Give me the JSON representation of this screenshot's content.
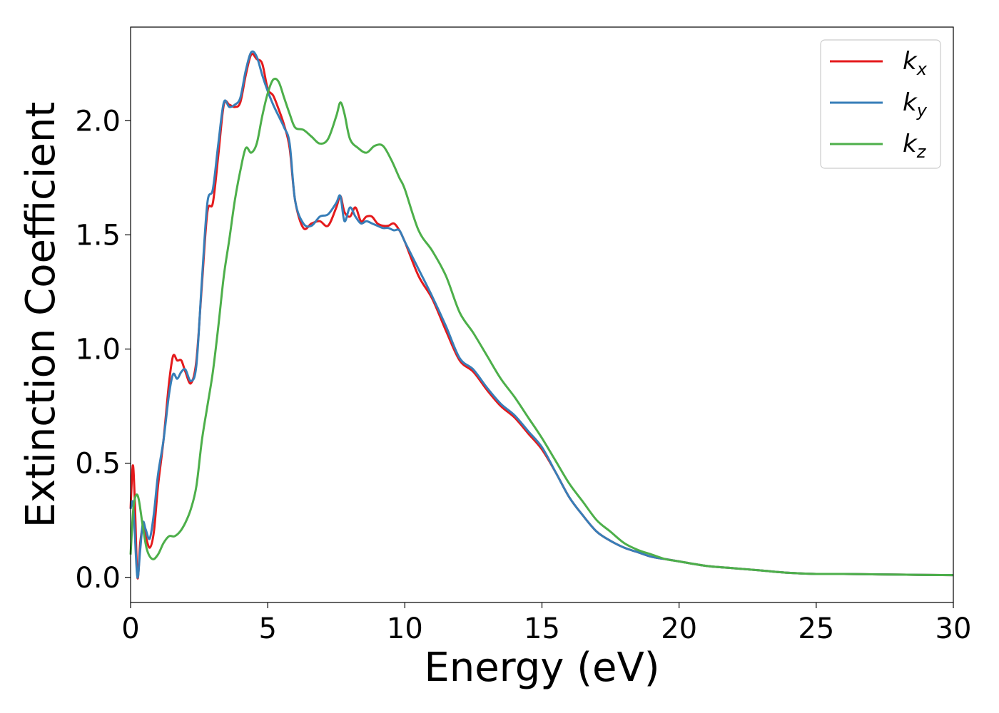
{
  "chart_data": {
    "type": "line",
    "xlabel": "Energy (eV)",
    "ylabel": "Extinction Coefficient",
    "xlim": [
      0,
      30
    ],
    "ylim": [
      -0.11,
      2.41
    ],
    "xticks": [
      0,
      5,
      10,
      15,
      20,
      25,
      30
    ],
    "xtick_labels": [
      "0",
      "5",
      "10",
      "15",
      "20",
      "25",
      "30"
    ],
    "yticks": [
      0.0,
      0.5,
      1.0,
      1.5,
      2.0
    ],
    "ytick_labels": [
      "0.0",
      "0.5",
      "1.0",
      "1.5",
      "2.0"
    ],
    "grid": false,
    "legend_position": "top-right",
    "series": [
      {
        "name": "k_x",
        "label_main": "k",
        "label_sub": "x",
        "color": "#e41a1c",
        "x": [
          0.0,
          0.08,
          0.15,
          0.25,
          0.35,
          0.45,
          0.55,
          0.7,
          0.85,
          1.0,
          1.2,
          1.4,
          1.55,
          1.7,
          1.85,
          2.0,
          2.2,
          2.4,
          2.6,
          2.8,
          3.0,
          3.2,
          3.4,
          3.6,
          3.8,
          4.0,
          4.2,
          4.4,
          4.6,
          4.8,
          5.0,
          5.2,
          5.4,
          5.6,
          5.8,
          6.0,
          6.3,
          6.6,
          6.9,
          7.2,
          7.5,
          7.65,
          7.8,
          8.0,
          8.2,
          8.4,
          8.6,
          8.8,
          9.0,
          9.2,
          9.4,
          9.6,
          9.8,
          10.0,
          10.5,
          11.0,
          11.5,
          12.0,
          12.5,
          13.0,
          13.5,
          14.0,
          14.5,
          15.0,
          15.5,
          16.0,
          16.5,
          17.0,
          17.5,
          18.0,
          18.5,
          19.0,
          19.5,
          20.0,
          21.0,
          22.0,
          23.0,
          24.0,
          25.0,
          26.0,
          28.0,
          30.0
        ],
        "y": [
          0.3,
          0.49,
          0.35,
          0.0,
          0.15,
          0.22,
          0.18,
          0.13,
          0.2,
          0.4,
          0.6,
          0.85,
          0.97,
          0.95,
          0.95,
          0.9,
          0.85,
          0.95,
          1.28,
          1.6,
          1.64,
          1.85,
          2.07,
          2.07,
          2.06,
          2.08,
          2.2,
          2.29,
          2.27,
          2.25,
          2.14,
          2.11,
          2.05,
          1.98,
          1.88,
          1.65,
          1.53,
          1.55,
          1.56,
          1.54,
          1.62,
          1.67,
          1.6,
          1.58,
          1.62,
          1.56,
          1.58,
          1.58,
          1.55,
          1.54,
          1.54,
          1.55,
          1.52,
          1.47,
          1.32,
          1.22,
          1.08,
          0.95,
          0.9,
          0.82,
          0.75,
          0.7,
          0.63,
          0.56,
          0.46,
          0.35,
          0.27,
          0.2,
          0.16,
          0.13,
          0.11,
          0.09,
          0.08,
          0.07,
          0.05,
          0.04,
          0.03,
          0.02,
          0.015,
          0.015,
          0.012,
          0.01
        ]
      },
      {
        "name": "k_y",
        "label_main": "k",
        "label_sub": "y",
        "color": "#377eb8",
        "x": [
          0.0,
          0.08,
          0.15,
          0.25,
          0.35,
          0.45,
          0.55,
          0.7,
          0.85,
          1.0,
          1.2,
          1.4,
          1.55,
          1.7,
          1.85,
          2.0,
          2.2,
          2.4,
          2.6,
          2.8,
          3.0,
          3.2,
          3.4,
          3.6,
          3.8,
          4.0,
          4.2,
          4.4,
          4.6,
          4.8,
          5.0,
          5.2,
          5.4,
          5.6,
          5.8,
          6.0,
          6.3,
          6.6,
          6.9,
          7.2,
          7.5,
          7.65,
          7.8,
          8.0,
          8.2,
          8.4,
          8.6,
          8.8,
          9.0,
          9.2,
          9.4,
          9.6,
          9.8,
          10.0,
          10.5,
          11.0,
          11.5,
          12.0,
          12.5,
          13.0,
          13.5,
          14.0,
          14.5,
          15.0,
          15.5,
          16.0,
          16.5,
          17.0,
          17.5,
          18.0,
          18.5,
          19.0,
          19.5,
          20.0,
          21.0,
          22.0,
          23.0,
          24.0,
          25.0,
          26.0,
          28.0,
          30.0
        ],
        "y": [
          0.3,
          0.33,
          0.2,
          0.0,
          0.12,
          0.24,
          0.21,
          0.17,
          0.28,
          0.45,
          0.6,
          0.8,
          0.89,
          0.87,
          0.9,
          0.91,
          0.86,
          0.93,
          1.3,
          1.64,
          1.7,
          1.9,
          2.08,
          2.06,
          2.07,
          2.1,
          2.22,
          2.3,
          2.28,
          2.2,
          2.13,
          2.07,
          2.02,
          1.97,
          1.9,
          1.65,
          1.55,
          1.54,
          1.58,
          1.59,
          1.64,
          1.67,
          1.56,
          1.62,
          1.58,
          1.55,
          1.56,
          1.55,
          1.54,
          1.53,
          1.53,
          1.52,
          1.52,
          1.47,
          1.35,
          1.23,
          1.1,
          0.96,
          0.91,
          0.83,
          0.76,
          0.71,
          0.64,
          0.57,
          0.46,
          0.35,
          0.27,
          0.2,
          0.16,
          0.13,
          0.11,
          0.09,
          0.08,
          0.07,
          0.05,
          0.04,
          0.03,
          0.02,
          0.015,
          0.015,
          0.012,
          0.01
        ]
      },
      {
        "name": "k_z",
        "label_main": "k",
        "label_sub": "z",
        "color": "#4daf4a",
        "x": [
          0.0,
          0.1,
          0.2,
          0.3,
          0.45,
          0.6,
          0.8,
          1.0,
          1.2,
          1.4,
          1.6,
          1.8,
          2.0,
          2.2,
          2.4,
          2.6,
          2.8,
          3.0,
          3.2,
          3.4,
          3.6,
          3.8,
          4.0,
          4.2,
          4.4,
          4.6,
          4.8,
          5.0,
          5.2,
          5.4,
          5.6,
          5.8,
          6.0,
          6.3,
          6.6,
          6.9,
          7.2,
          7.5,
          7.65,
          7.8,
          8.0,
          8.3,
          8.6,
          8.9,
          9.2,
          9.5,
          9.8,
          10.0,
          10.5,
          11.0,
          11.5,
          12.0,
          12.5,
          13.0,
          13.5,
          14.0,
          14.5,
          15.0,
          15.5,
          16.0,
          16.5,
          17.0,
          17.5,
          18.0,
          18.5,
          19.0,
          19.5,
          20.0,
          21.0,
          22.0,
          23.0,
          24.0,
          25.0,
          26.0,
          28.0,
          30.0
        ],
        "y": [
          0.1,
          0.3,
          0.36,
          0.34,
          0.22,
          0.12,
          0.08,
          0.1,
          0.15,
          0.18,
          0.18,
          0.2,
          0.24,
          0.3,
          0.4,
          0.6,
          0.75,
          0.9,
          1.1,
          1.32,
          1.48,
          1.65,
          1.78,
          1.88,
          1.86,
          1.9,
          2.02,
          2.12,
          2.18,
          2.17,
          2.1,
          2.03,
          1.97,
          1.96,
          1.93,
          1.9,
          1.92,
          2.02,
          2.08,
          2.03,
          1.92,
          1.88,
          1.86,
          1.89,
          1.89,
          1.83,
          1.75,
          1.7,
          1.52,
          1.43,
          1.32,
          1.16,
          1.07,
          0.97,
          0.87,
          0.79,
          0.7,
          0.61,
          0.51,
          0.41,
          0.33,
          0.25,
          0.2,
          0.15,
          0.12,
          0.1,
          0.08,
          0.07,
          0.05,
          0.04,
          0.03,
          0.02,
          0.015,
          0.015,
          0.012,
          0.01
        ]
      }
    ]
  }
}
